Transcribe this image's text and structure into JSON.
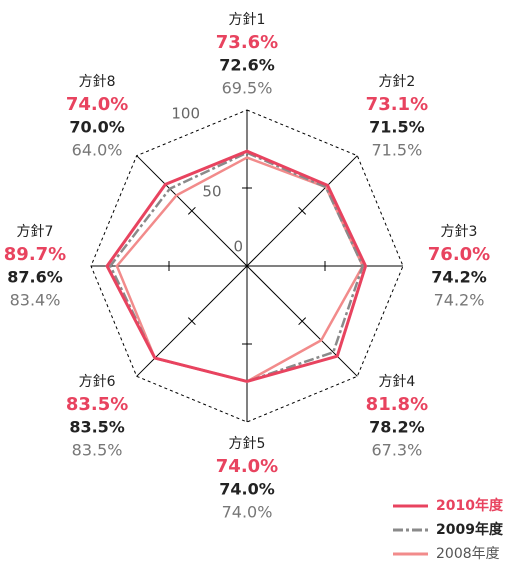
{
  "chart_data": {
    "type": "radar",
    "categories": [
      "方針1",
      "方針2",
      "方針3",
      "方針4",
      "方針5",
      "方針6",
      "方針7",
      "方針8"
    ],
    "rlim": [
      0,
      100
    ],
    "rticks": [
      0,
      50,
      100
    ],
    "series": [
      {
        "name": "2010年度",
        "color": "#e8435f",
        "style": "solid",
        "values": [
          73.6,
          73.1,
          76.0,
          81.8,
          74.0,
          83.5,
          89.7,
          74.0
        ],
        "value_labels": [
          "73.6%",
          "73.1%",
          "76.0%",
          "81.8%",
          "74.0%",
          "83.5%",
          "89.7%",
          "74.0%"
        ]
      },
      {
        "name": "2009年度",
        "color": "#8a8a8a",
        "style": "dashdot",
        "values": [
          72.6,
          71.5,
          74.2,
          78.2,
          74.0,
          83.5,
          87.6,
          70.0
        ],
        "value_labels": [
          "72.6%",
          "71.5%",
          "74.2%",
          "78.2%",
          "74.0%",
          "83.5%",
          "87.6%",
          "70.0%"
        ]
      },
      {
        "name": "2008年度",
        "color": "#f28b8b",
        "style": "solid",
        "values": [
          69.5,
          71.5,
          74.2,
          67.3,
          74.0,
          83.5,
          83.4,
          64.0
        ],
        "value_labels": [
          "69.5%",
          "71.5%",
          "74.2%",
          "67.3%",
          "74.0%",
          "83.5%",
          "83.4%",
          "64.0%"
        ]
      }
    ]
  }
}
